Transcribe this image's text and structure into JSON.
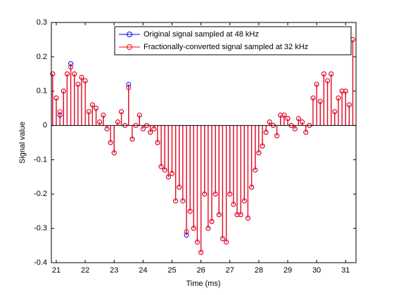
{
  "chart_data": {
    "type": "stem",
    "xlabel": "Time (ms)",
    "ylabel": "Signal value",
    "xlim": [
      20.83,
      31.36
    ],
    "ylim": [
      -0.4,
      0.3
    ],
    "xticks": [
      21,
      22,
      23,
      24,
      25,
      26,
      27,
      28,
      29,
      30,
      31
    ],
    "yticks": [
      -0.4,
      -0.3,
      -0.2,
      -0.1,
      0,
      0.1,
      0.2,
      0.3
    ],
    "legend": "upper right",
    "x": [
      20.875,
      21.0,
      21.125,
      21.25,
      21.375,
      21.5,
      21.625,
      21.75,
      21.875,
      22.0,
      22.125,
      22.25,
      22.375,
      22.5,
      22.625,
      22.75,
      22.875,
      23.0,
      23.125,
      23.25,
      23.375,
      23.5,
      23.625,
      23.75,
      23.875,
      24.0,
      24.125,
      24.25,
      24.375,
      24.5,
      24.625,
      24.75,
      24.875,
      25.0,
      25.125,
      25.25,
      25.375,
      25.5,
      25.625,
      25.75,
      25.875,
      26.0,
      26.125,
      26.25,
      26.375,
      26.5,
      26.625,
      26.75,
      26.875,
      27.0,
      27.125,
      27.25,
      27.375,
      27.5,
      27.625,
      27.75,
      27.875,
      28.0,
      28.125,
      28.25,
      28.375,
      28.5,
      28.625,
      28.75,
      28.875,
      29.0,
      29.125,
      29.25,
      29.375,
      29.5,
      29.625,
      29.75,
      29.875,
      30.0,
      30.125,
      30.25,
      30.375,
      30.5,
      30.625,
      30.75,
      30.875,
      31.0,
      31.125,
      31.25
    ],
    "series": [
      {
        "name": "Original signal sampled at 48 kHz",
        "color": "#0000ff",
        "values": [
          0.15,
          0.08,
          0.03,
          0.1,
          0.15,
          0.18,
          0.15,
          0.12,
          0.14,
          0.13,
          0.04,
          0.06,
          0.05,
          0.01,
          0.03,
          -0.01,
          -0.05,
          -0.08,
          0.01,
          0.04,
          0.0,
          0.12,
          -0.04,
          0.0,
          0.03,
          -0.01,
          0.0,
          -0.02,
          -0.01,
          -0.05,
          -0.12,
          -0.13,
          -0.15,
          -0.14,
          -0.22,
          -0.18,
          -0.22,
          -0.32,
          -0.25,
          -0.3,
          -0.34,
          -0.37,
          -0.2,
          -0.3,
          -0.28,
          -0.2,
          -0.26,
          -0.33,
          -0.34,
          -0.2,
          -0.23,
          -0.26,
          -0.26,
          -0.22,
          -0.27,
          -0.18,
          -0.13,
          -0.08,
          -0.06,
          -0.02,
          0.01,
          0.0,
          -0.03,
          0.03,
          0.03,
          0.02,
          0.0,
          -0.01,
          0.02,
          0.01,
          -0.02,
          0.0,
          0.08,
          0.12,
          0.07,
          0.15,
          0.13,
          0.15,
          0.04,
          0.08,
          0.1,
          0.1,
          0.06,
          0.25
        ]
      },
      {
        "name": "Fractionally-converted signal sampled at 32 kHz",
        "color": "#ff0000",
        "values": [
          0.15,
          0.08,
          0.04,
          0.1,
          0.15,
          0.17,
          0.15,
          0.12,
          0.14,
          0.13,
          0.04,
          0.06,
          0.05,
          0.01,
          0.03,
          -0.01,
          -0.05,
          -0.08,
          0.01,
          0.04,
          0.0,
          0.11,
          -0.04,
          0.0,
          0.03,
          -0.01,
          0.0,
          -0.02,
          -0.01,
          -0.05,
          -0.12,
          -0.13,
          -0.15,
          -0.14,
          -0.22,
          -0.18,
          -0.22,
          -0.31,
          -0.25,
          -0.3,
          -0.34,
          -0.37,
          -0.2,
          -0.3,
          -0.28,
          -0.2,
          -0.26,
          -0.33,
          -0.34,
          -0.2,
          -0.23,
          -0.26,
          -0.26,
          -0.22,
          -0.27,
          -0.18,
          -0.13,
          -0.08,
          -0.06,
          -0.02,
          0.01,
          0.0,
          -0.03,
          0.03,
          0.03,
          0.02,
          0.0,
          -0.01,
          0.02,
          0.01,
          -0.02,
          0.0,
          0.08,
          0.12,
          0.07,
          0.15,
          0.13,
          0.15,
          0.04,
          0.08,
          0.1,
          0.1,
          0.06,
          0.25
        ]
      }
    ]
  }
}
